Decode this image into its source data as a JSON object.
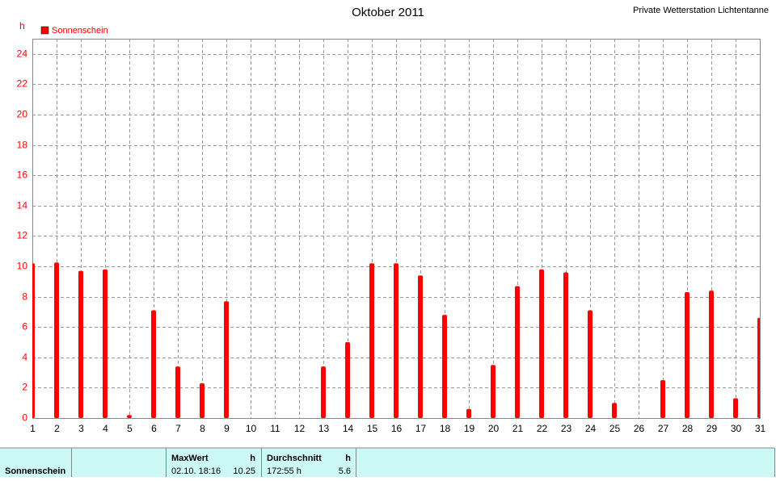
{
  "chart_data": {
    "type": "bar",
    "title": "Oktober 2011",
    "station": "Private Wetterstation Lichtentanne",
    "ylabel": "h",
    "x": [
      1,
      2,
      3,
      4,
      5,
      6,
      7,
      8,
      9,
      10,
      11,
      12,
      13,
      14,
      15,
      16,
      17,
      18,
      19,
      20,
      21,
      22,
      23,
      24,
      25,
      26,
      27,
      28,
      29,
      30,
      31
    ],
    "series": [
      {
        "name": "Sonnenschein",
        "color": "#ff0000",
        "values": [
          10.2,
          10.25,
          9.7,
          9.8,
          0.2,
          7.1,
          3.4,
          2.3,
          7.7,
          0,
          0,
          0,
          3.4,
          5.0,
          10.2,
          10.2,
          9.4,
          6.8,
          0.6,
          3.5,
          8.7,
          9.8,
          9.6,
          7.1,
          1.0,
          0,
          2.5,
          8.3,
          8.4,
          1.3,
          6.6
        ]
      }
    ],
    "xlim": [
      1,
      31
    ],
    "xticks": [
      1,
      2,
      3,
      4,
      5,
      6,
      7,
      8,
      9,
      10,
      11,
      12,
      13,
      14,
      15,
      16,
      17,
      18,
      19,
      20,
      21,
      22,
      23,
      24,
      25,
      26,
      27,
      28,
      29,
      30,
      31
    ],
    "ylim": [
      0,
      25
    ],
    "yticks": [
      0,
      2,
      4,
      6,
      8,
      10,
      12,
      14,
      16,
      18,
      20,
      22,
      24
    ],
    "grid": true
  },
  "table": {
    "header": [
      "MaxWert",
      "h",
      "Durchschnitt",
      "h"
    ],
    "rows": [
      [
        "Sonnenschein",
        "02.10.  18:16",
        "10.25",
        "172:55 h",
        "5.6"
      ]
    ]
  }
}
